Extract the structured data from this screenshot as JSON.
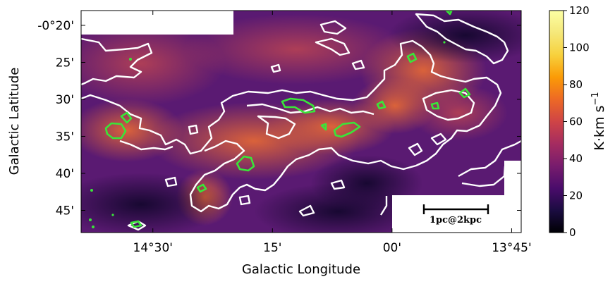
{
  "chart_data": {
    "type": "heatmap",
    "xlabel": "Galactic Longitude",
    "ylabel": "Galactic Latitude",
    "x_ticks": [
      {
        "label": "14°30'",
        "value": 14.5
      },
      {
        "label": "15'",
        "value": 14.25
      },
      {
        "label": "00'",
        "value": 14.0
      },
      {
        "label": "13°45'",
        "value": 13.75
      }
    ],
    "y_ticks": [
      {
        "label": "-0°20'",
        "value": -0.3333
      },
      {
        "label": "25'",
        "value": -0.4167
      },
      {
        "label": "30'",
        "value": -0.5
      },
      {
        "label": "35'",
        "value": -0.5833
      },
      {
        "label": "40'",
        "value": -0.6667
      },
      {
        "label": "45'",
        "value": -0.75
      }
    ],
    "xlim": [
      14.65,
      13.73
    ],
    "ylim": [
      -0.8,
      -0.3
    ],
    "colorbar": {
      "label": "K·km s",
      "label_superscript": "−1",
      "range": [
        0,
        120
      ],
      "ticks": [
        "0",
        "20",
        "40",
        "60",
        "80",
        "100",
        "120"
      ],
      "colormap": "inferno"
    },
    "scale_bar": {
      "label": "1pc@2kpc"
    },
    "contours": [
      {
        "color": "#ffffff",
        "description": "white intensity contour"
      },
      {
        "color": "#33dd33",
        "description": "green dense clump contour"
      }
    ]
  }
}
